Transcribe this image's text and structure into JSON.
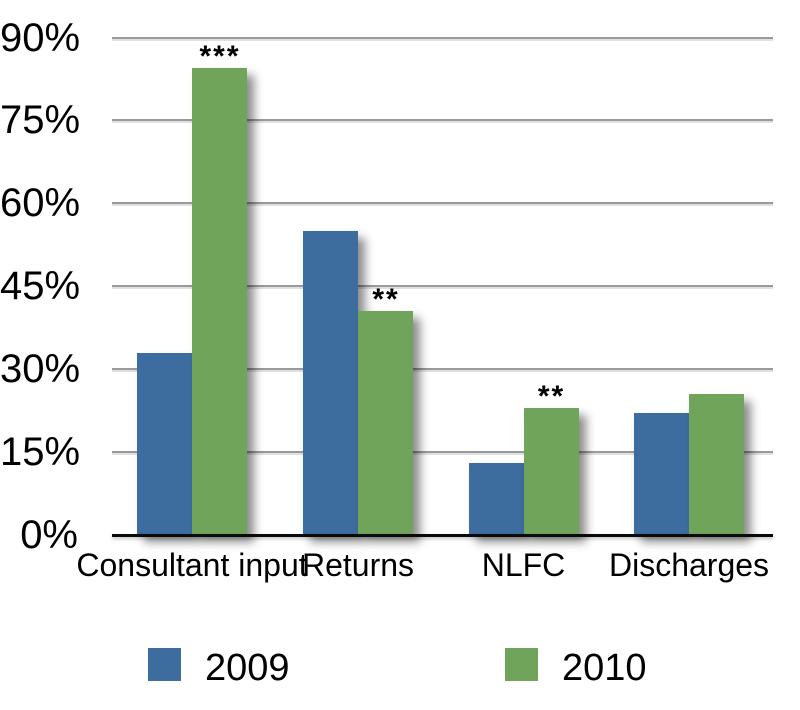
{
  "chart_data": {
    "type": "bar",
    "categories": [
      "Consultant input",
      "Returns",
      "NLFC",
      "Discharges"
    ],
    "series": [
      {
        "name": "2009",
        "color": "#3C6D9E",
        "values": [
          33,
          55,
          13,
          22
        ]
      },
      {
        "name": "2010",
        "color": "#6FA45A",
        "values": [
          84.5,
          40.5,
          23,
          25.5
        ]
      }
    ],
    "annotations": [
      "***",
      "**",
      "**",
      ""
    ],
    "annotation_series": "2010",
    "ytick_labels": [
      "0%",
      "15%",
      "30%",
      "45%",
      "60%",
      "75%",
      "90%"
    ],
    "ylim": [
      0,
      90
    ],
    "ytick_step": 15,
    "grid": true,
    "legend_position": "bottom",
    "title": "",
    "xlabel": "",
    "ylabel": ""
  },
  "legend": {
    "items": [
      {
        "label": "2009",
        "color": "#3C6D9E"
      },
      {
        "label": "2010",
        "color": "#6FA45A"
      }
    ]
  }
}
